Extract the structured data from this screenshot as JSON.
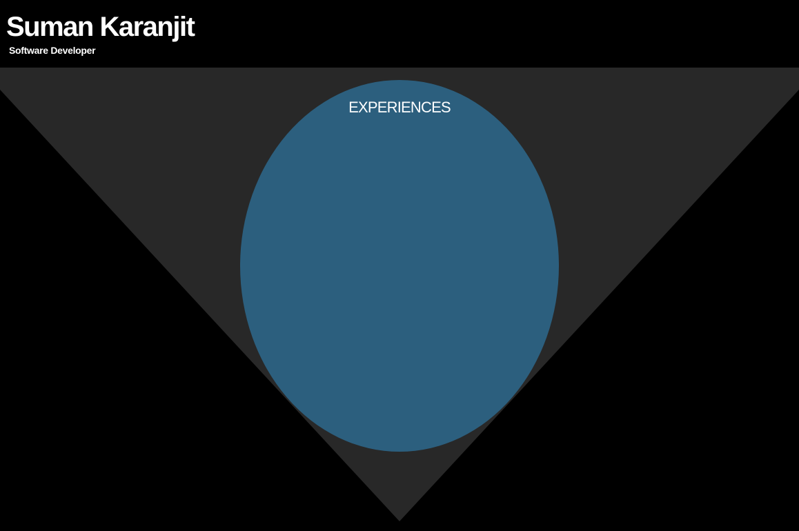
{
  "header": {
    "name": "Suman Karanjit",
    "role": "Software Developer"
  },
  "section": {
    "title": "EXPERIENCES"
  },
  "colors": {
    "background": "#000000",
    "triangle": "#282828",
    "circle": "#2c5f7e",
    "text": "#ffffff"
  }
}
